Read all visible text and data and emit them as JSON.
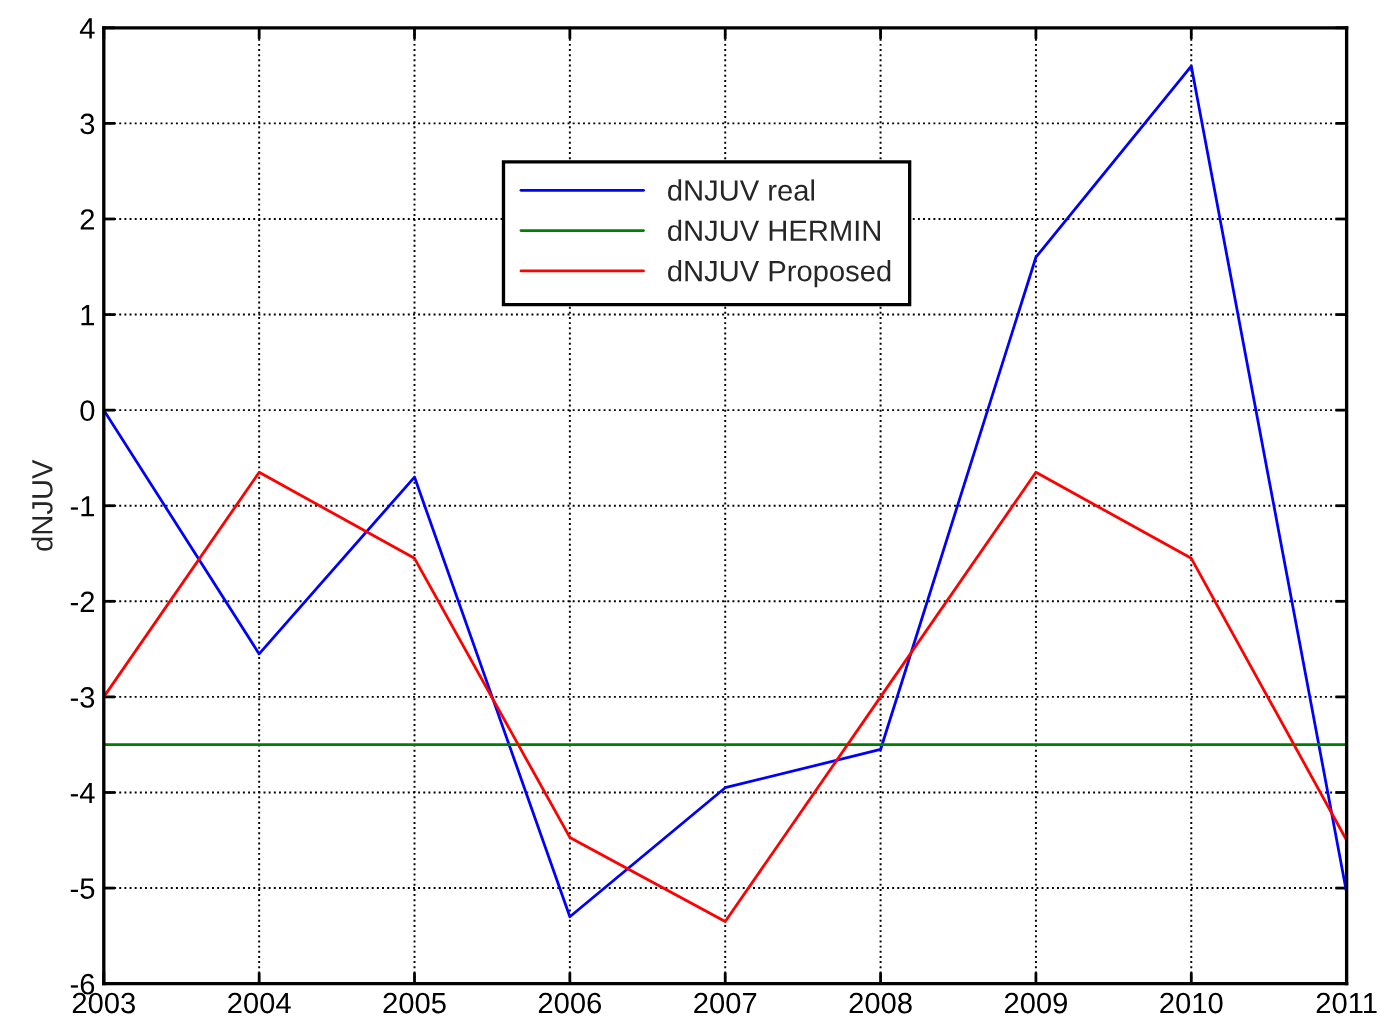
{
  "chart_data": {
    "type": "line",
    "ylabel": "dNJUV",
    "x": [
      2003,
      2004,
      2005,
      2006,
      2007,
      2008,
      2009,
      2010,
      2011
    ],
    "series": [
      {
        "name": "dNJUV real",
        "color": "#0000ff",
        "values": [
          0,
          -2.55,
          -0.7,
          -5.3,
          -3.95,
          -3.55,
          1.6,
          3.6,
          -5.05
        ]
      },
      {
        "name": "dNJUV HERMIN",
        "color": "#008000",
        "values": [
          -3.5,
          -3.5,
          -3.5,
          -3.5,
          -3.5,
          -3.5,
          -3.5,
          -3.5,
          -3.5
        ]
      },
      {
        "name": "dNJUV Proposed",
        "color": "#ff0000",
        "values": [
          -3,
          -0.65,
          -1.55,
          -4.47,
          -5.35,
          -3,
          -0.65,
          -1.55,
          -4.5
        ]
      }
    ],
    "xlim": [
      2003,
      2011
    ],
    "xticks": [
      2003,
      2004,
      2005,
      2006,
      2007,
      2008,
      2009,
      2010,
      2011
    ],
    "ylim": [
      -6,
      4
    ],
    "yticks": [
      -6,
      -5,
      -4,
      -3,
      -2,
      -1,
      0,
      1,
      2,
      3,
      4
    ],
    "grid": true,
    "legend": "top",
    "marker": "none",
    "line_style": "solid"
  }
}
